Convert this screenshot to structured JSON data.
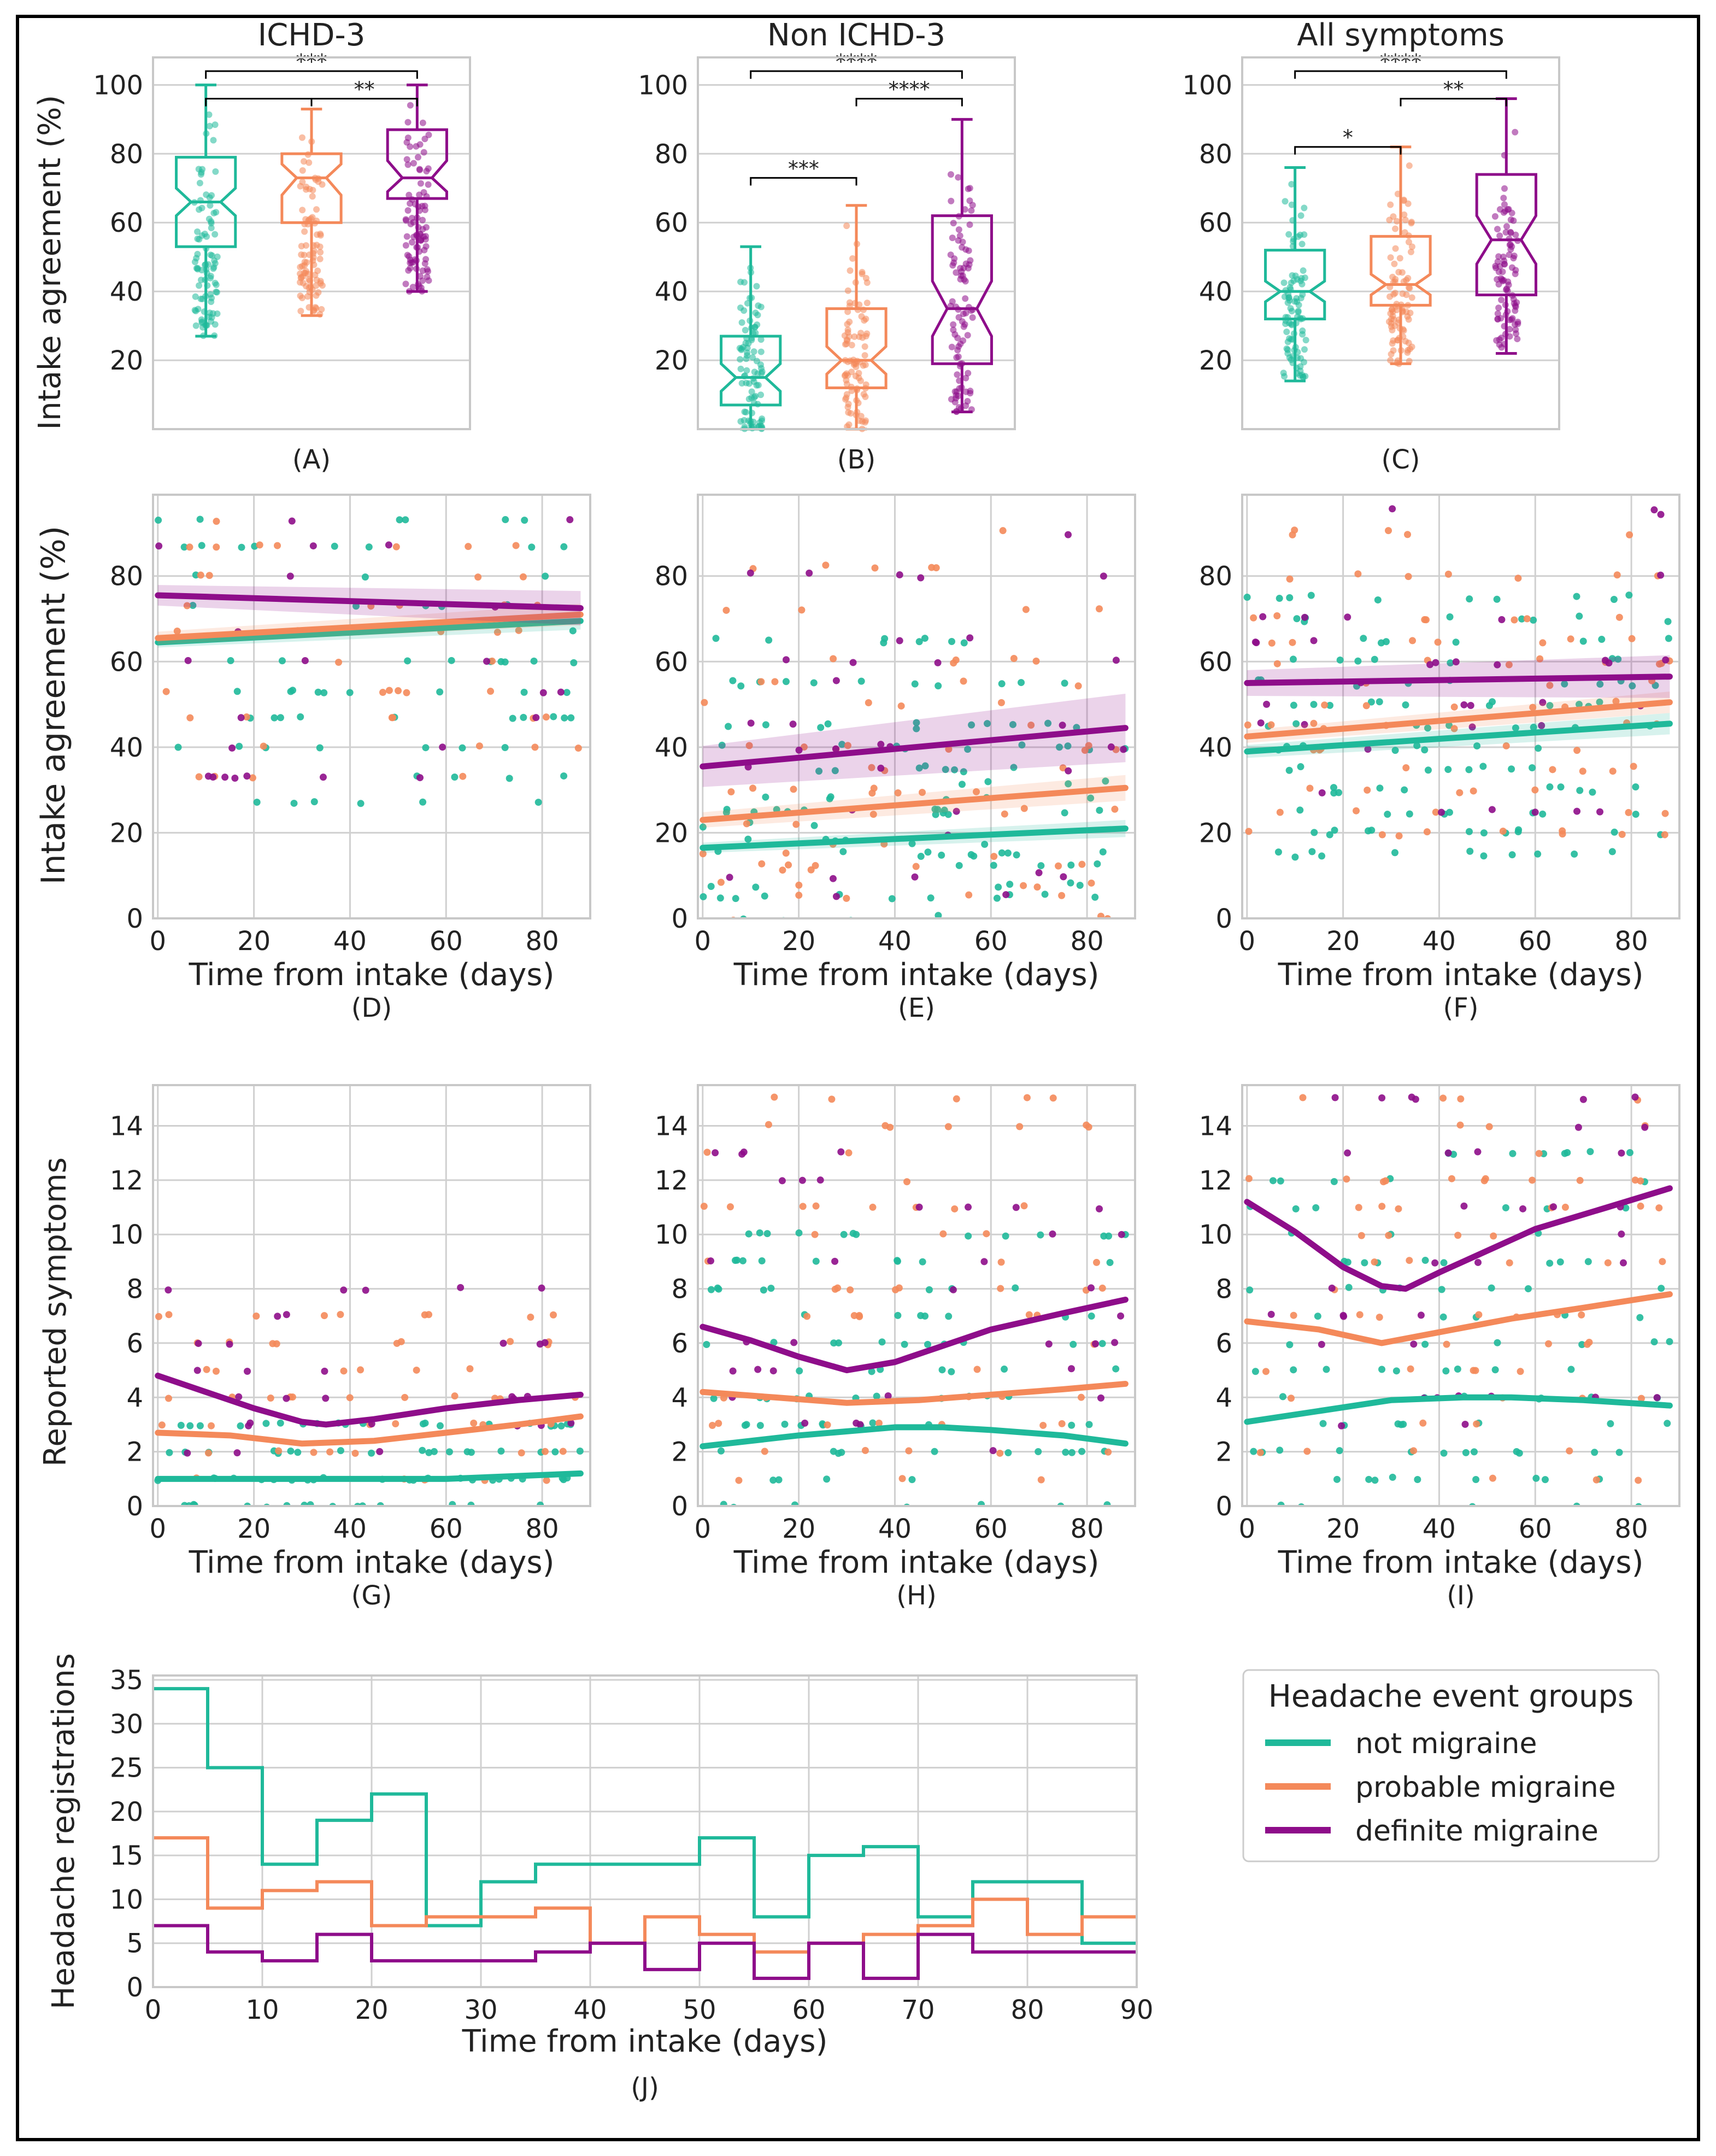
{
  "groups": [
    {
      "name": "not migraine",
      "color": "#1fb99a"
    },
    {
      "name": "probable migraine",
      "color": "#f4895a"
    },
    {
      "name": "definite migraine",
      "color": "#8e0d8a"
    }
  ],
  "legend": {
    "title": "Headache event groups",
    "entries": [
      "not migraine",
      "probable migraine",
      "definite migraine"
    ]
  },
  "row1_ylabel": "Intake agreement (%)",
  "row2_ylabel": "Intake agreement (%)",
  "row3_ylabel": "Reported symptoms",
  "time_xlabel": "Time from intake (days)",
  "chart_data": [
    {
      "id": "A",
      "type": "box",
      "title": "ICHD-3",
      "caption": "(A)",
      "ylabel": "Intake agreement (%)",
      "ylim": [
        0,
        108
      ],
      "yticks": [
        20,
        40,
        60,
        80,
        100
      ],
      "series": [
        {
          "name": "not migraine",
          "q1": 53,
          "median": 66,
          "q3": 79,
          "whisker_low": 27,
          "whisker_high": 100,
          "notch": [
            62,
            70
          ]
        },
        {
          "name": "probable migraine",
          "q1": 60,
          "median": 73,
          "q3": 80,
          "whisker_low": 33,
          "whisker_high": 93,
          "notch": [
            68,
            77
          ]
        },
        {
          "name": "definite migraine",
          "q1": 67,
          "median": 73,
          "q3": 87,
          "whisker_low": 40,
          "whisker_high": 100,
          "notch": [
            69,
            78
          ]
        }
      ],
      "significance": [
        {
          "from": 0,
          "to": 2,
          "label": "***",
          "y": 104
        },
        {
          "from": 0,
          "to": 1,
          "label": "",
          "y": 96
        },
        {
          "from": 1,
          "to": 2,
          "label": "**",
          "y": 96
        }
      ]
    },
    {
      "id": "B",
      "type": "box",
      "title": "Non ICHD-3",
      "caption": "(B)",
      "ylabel": "",
      "ylim": [
        0,
        108
      ],
      "yticks": [
        20,
        40,
        60,
        80,
        100
      ],
      "series": [
        {
          "name": "not migraine",
          "q1": 7,
          "median": 15,
          "q3": 27,
          "whisker_low": 0,
          "whisker_high": 53,
          "notch": [
            11,
            19
          ]
        },
        {
          "name": "probable migraine",
          "q1": 12,
          "median": 20,
          "q3": 35,
          "whisker_low": 0,
          "whisker_high": 65,
          "notch": [
            16,
            24
          ]
        },
        {
          "name": "definite migraine",
          "q1": 19,
          "median": 35,
          "q3": 62,
          "whisker_low": 5,
          "whisker_high": 90,
          "notch": [
            27,
            43
          ]
        }
      ],
      "significance": [
        {
          "from": 0,
          "to": 2,
          "label": "****",
          "y": 104
        },
        {
          "from": 1,
          "to": 2,
          "label": "****",
          "y": 96
        },
        {
          "from": 0,
          "to": 1,
          "label": "***",
          "y": 73
        }
      ]
    },
    {
      "id": "C",
      "type": "box",
      "title": "All symptoms",
      "caption": "(C)",
      "ylabel": "",
      "ylim": [
        0,
        108
      ],
      "yticks": [
        20,
        40,
        60,
        80,
        100
      ],
      "series": [
        {
          "name": "not migraine",
          "q1": 32,
          "median": 40,
          "q3": 52,
          "whisker_low": 14,
          "whisker_high": 76,
          "notch": [
            37,
            43
          ]
        },
        {
          "name": "probable migraine",
          "q1": 36,
          "median": 42,
          "q3": 56,
          "whisker_low": 19,
          "whisker_high": 82,
          "notch": [
            39,
            45
          ]
        },
        {
          "name": "definite migraine",
          "q1": 39,
          "median": 55,
          "q3": 74,
          "whisker_low": 22,
          "whisker_high": 96,
          "notch": [
            48,
            62
          ]
        }
      ],
      "significance": [
        {
          "from": 0,
          "to": 2,
          "label": "****",
          "y": 104
        },
        {
          "from": 1,
          "to": 2,
          "label": "**",
          "y": 96
        },
        {
          "from": 0,
          "to": 1,
          "label": "*",
          "y": 82
        }
      ]
    },
    {
      "id": "D",
      "type": "scatter",
      "caption": "(D)",
      "xlabel": "Time from intake (days)",
      "ylabel": "Intake agreement (%)",
      "xlim": [
        -1,
        90
      ],
      "ylim": [
        0,
        99
      ],
      "xticks": [
        0,
        20,
        40,
        60,
        80
      ],
      "yticks": [
        0,
        20,
        40,
        60,
        80
      ],
      "scatter_levels": [
        [
          27,
          33,
          40,
          47,
          53,
          60,
          67,
          73,
          80,
          87,
          93
        ],
        [
          33,
          40,
          47,
          53,
          60,
          67,
          73,
          80,
          87,
          93
        ],
        [
          33,
          40,
          47,
          53,
          60,
          67,
          73,
          80,
          87,
          93
        ]
      ],
      "scatter_counts": [
        70,
        45,
        25
      ],
      "jitter": 0.6,
      "series": [
        {
          "name": "not migraine",
          "x": [
            0,
            88
          ],
          "y": [
            64.5,
            69.5
          ],
          "ci": 2
        },
        {
          "name": "probable migraine",
          "x": [
            0,
            88
          ],
          "y": [
            65.5,
            71
          ],
          "ci": 2.5
        },
        {
          "name": "definite migraine",
          "x": [
            0,
            88
          ],
          "y": [
            75.5,
            72.5
          ],
          "ci": 4
        }
      ]
    },
    {
      "id": "E",
      "type": "scatter",
      "caption": "(E)",
      "xlabel": "Time from intake (days)",
      "ylabel": "",
      "xlim": [
        -1,
        90
      ],
      "ylim": [
        0,
        99
      ],
      "xticks": [
        0,
        20,
        40,
        60,
        80
      ],
      "yticks": [
        0,
        20,
        40,
        60,
        80
      ],
      "scatter_levels": [
        [
          0,
          5,
          8,
          12,
          15,
          18,
          22,
          25,
          28,
          32,
          35,
          40,
          45,
          55,
          65
        ],
        [
          0,
          5,
          8,
          12,
          15,
          18,
          22,
          25,
          30,
          35,
          40,
          45,
          50,
          55,
          60,
          72,
          82,
          90
        ],
        [
          5,
          10,
          15,
          20,
          25,
          30,
          35,
          40,
          45,
          50,
          55,
          60,
          65,
          70,
          80,
          90
        ]
      ],
      "scatter_counts": [
        120,
        75,
        35
      ],
      "jitter": 1.5,
      "series": [
        {
          "name": "not migraine",
          "x": [
            0,
            88
          ],
          "y": [
            16.5,
            21
          ],
          "ci": 2
        },
        {
          "name": "probable migraine",
          "x": [
            0,
            88
          ],
          "y": [
            23,
            30.5
          ],
          "ci": 3
        },
        {
          "name": "definite migraine",
          "x": [
            0,
            88
          ],
          "y": [
            35.5,
            44.5
          ],
          "ci": 8
        }
      ]
    },
    {
      "id": "F",
      "type": "scatter",
      "caption": "(F)",
      "xlabel": "Time from intake (days)",
      "ylabel": "",
      "xlim": [
        -1,
        90
      ],
      "ylim": [
        0,
        99
      ],
      "xticks": [
        0,
        20,
        40,
        60,
        80
      ],
      "yticks": [
        0,
        20,
        40,
        60,
        80
      ],
      "scatter_levels": [
        [
          15,
          20,
          25,
          30,
          35,
          40,
          45,
          50,
          55,
          60,
          65,
          70,
          75
        ],
        [
          20,
          25,
          30,
          35,
          40,
          45,
          50,
          55,
          60,
          65,
          70,
          80,
          90
        ],
        [
          25,
          30,
          40,
          45,
          50,
          55,
          60,
          65,
          70,
          80,
          90,
          95
        ]
      ],
      "scatter_counts": [
        120,
        80,
        35
      ],
      "jitter": 1.5,
      "series": [
        {
          "name": "not migraine",
          "x": [
            0,
            88
          ],
          "y": [
            39,
            45.5
          ],
          "ci": 2.5
        },
        {
          "name": "probable migraine",
          "x": [
            0,
            88
          ],
          "y": [
            42.5,
            50.5
          ],
          "ci": 2.5
        },
        {
          "name": "definite migraine",
          "x": [
            0,
            88
          ],
          "y": [
            55,
            56.5
          ],
          "ci": 5
        }
      ]
    },
    {
      "id": "G",
      "type": "scatter",
      "caption": "(G)",
      "xlabel": "Time from intake (days)",
      "ylabel": "Reported symptoms",
      "xlim": [
        -1,
        90
      ],
      "ylim": [
        0,
        15.5
      ],
      "xticks": [
        0,
        20,
        40,
        60,
        80
      ],
      "yticks": [
        0,
        2,
        4,
        6,
        8,
        10,
        12,
        14
      ],
      "scatter_levels": [
        [
          0,
          1,
          2,
          3
        ],
        [
          1,
          2,
          3,
          4,
          5,
          6,
          7
        ],
        [
          2,
          3,
          4,
          5,
          6,
          7,
          8
        ]
      ],
      "scatter_counts": [
        80,
        55,
        30
      ],
      "jitter": 0.12,
      "series": [
        {
          "name": "not migraine",
          "x": [
            0,
            20,
            40,
            60,
            88
          ],
          "y": [
            1.0,
            1.0,
            1.0,
            1.0,
            1.2
          ]
        },
        {
          "name": "probable migraine",
          "x": [
            0,
            15,
            30,
            45,
            60,
            75,
            88
          ],
          "y": [
            2.7,
            2.6,
            2.3,
            2.4,
            2.7,
            3.0,
            3.3
          ]
        },
        {
          "name": "definite migraine",
          "x": [
            0,
            10,
            20,
            30,
            35,
            45,
            60,
            75,
            88
          ],
          "y": [
            4.8,
            4.2,
            3.6,
            3.1,
            3.0,
            3.2,
            3.6,
            3.9,
            4.1
          ]
        }
      ]
    },
    {
      "id": "H",
      "type": "scatter",
      "caption": "(H)",
      "xlabel": "Time from intake (days)",
      "ylabel": "",
      "xlim": [
        -1,
        90
      ],
      "ylim": [
        0,
        15.5
      ],
      "xticks": [
        0,
        20,
        40,
        60,
        80
      ],
      "yticks": [
        0,
        2,
        4,
        6,
        8,
        10,
        12,
        14
      ],
      "scatter_levels": [
        [
          0,
          1,
          2,
          3,
          4,
          5,
          6,
          7,
          8,
          9,
          10
        ],
        [
          1,
          2,
          3,
          4,
          5,
          6,
          7,
          8,
          9,
          10,
          11,
          12,
          13,
          14,
          15
        ],
        [
          2,
          3,
          4,
          5,
          6,
          7,
          8,
          9,
          10,
          11,
          12,
          13
        ]
      ],
      "scatter_counts": [
        100,
        65,
        35
      ],
      "jitter": 0.12,
      "series": [
        {
          "name": "not migraine",
          "x": [
            0,
            20,
            40,
            50,
            60,
            75,
            88
          ],
          "y": [
            2.2,
            2.6,
            2.9,
            2.9,
            2.8,
            2.6,
            2.3
          ]
        },
        {
          "name": "probable migraine",
          "x": [
            0,
            15,
            30,
            45,
            60,
            75,
            88
          ],
          "y": [
            4.2,
            4.0,
            3.8,
            3.9,
            4.1,
            4.3,
            4.5
          ]
        },
        {
          "name": "definite migraine",
          "x": [
            0,
            10,
            20,
            30,
            40,
            50,
            60,
            75,
            88
          ],
          "y": [
            6.6,
            6.1,
            5.5,
            5.0,
            5.3,
            5.9,
            6.5,
            7.1,
            7.6
          ]
        }
      ]
    },
    {
      "id": "I",
      "type": "scatter",
      "caption": "(I)",
      "xlabel": "Time from intake (days)",
      "ylabel": "",
      "xlim": [
        -1,
        90
      ],
      "ylim": [
        0,
        15.5
      ],
      "xticks": [
        0,
        20,
        40,
        60,
        80
      ],
      "yticks": [
        0,
        2,
        4,
        6,
        8,
        10,
        12,
        14
      ],
      "scatter_levels": [
        [
          0,
          1,
          2,
          3,
          4,
          5,
          6,
          7,
          8,
          9,
          10,
          11,
          12,
          13
        ],
        [
          1,
          2,
          3,
          4,
          5,
          6,
          7,
          8,
          9,
          10,
          11,
          12,
          13,
          14,
          15
        ],
        [
          3,
          4,
          5,
          6,
          7,
          8,
          9,
          10,
          11,
          12,
          13,
          14,
          15
        ]
      ],
      "scatter_counts": [
        100,
        65,
        35
      ],
      "jitter": 0.12,
      "series": [
        {
          "name": "not migraine",
          "x": [
            0,
            15,
            30,
            45,
            55,
            70,
            88
          ],
          "y": [
            3.1,
            3.5,
            3.9,
            4.0,
            4.0,
            3.9,
            3.7
          ]
        },
        {
          "name": "probable migraine",
          "x": [
            0,
            15,
            28,
            40,
            55,
            70,
            88
          ],
          "y": [
            6.8,
            6.5,
            6.0,
            6.4,
            6.9,
            7.3,
            7.8
          ]
        },
        {
          "name": "definite migraine",
          "x": [
            0,
            10,
            20,
            28,
            33,
            40,
            50,
            60,
            75,
            88
          ],
          "y": [
            11.2,
            10.1,
            8.8,
            8.1,
            8.0,
            8.6,
            9.4,
            10.2,
            11.0,
            11.7
          ]
        }
      ]
    },
    {
      "id": "J",
      "type": "step",
      "caption": "(J)",
      "xlabel": "Time from intake (days)",
      "ylabel": "Headache registrations",
      "xlim": [
        0,
        90
      ],
      "ylim": [
        0,
        35.5
      ],
      "xticks": [
        0,
        10,
        20,
        30,
        40,
        50,
        60,
        70,
        80,
        90
      ],
      "yticks": [
        0,
        5,
        10,
        15,
        20,
        25,
        30,
        35
      ],
      "bin_edges": [
        0,
        5,
        10,
        15,
        20,
        25,
        30,
        35,
        40,
        45,
        50,
        55,
        60,
        65,
        70,
        75,
        80,
        85,
        90
      ],
      "series": [
        {
          "name": "not migraine",
          "counts": [
            34,
            25,
            14,
            19,
            22,
            7,
            12,
            14,
            14,
            14,
            17,
            8,
            15,
            16,
            8,
            12,
            12,
            5
          ]
        },
        {
          "name": "probable migraine",
          "counts": [
            17,
            9,
            11,
            12,
            7,
            8,
            8,
            9,
            5,
            8,
            6,
            4,
            5,
            6,
            7,
            10,
            6,
            8
          ]
        },
        {
          "name": "definite migraine",
          "counts": [
            7,
            4,
            3,
            6,
            3,
            3,
            3,
            4,
            5,
            2,
            5,
            1,
            5,
            1,
            6,
            4,
            4,
            4
          ]
        }
      ]
    }
  ]
}
